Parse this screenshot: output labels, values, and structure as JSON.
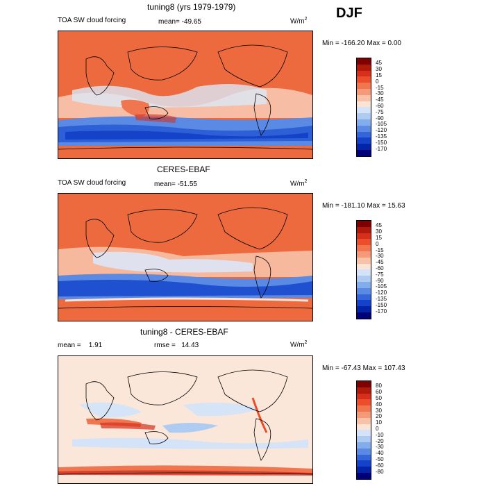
{
  "season": "DJF",
  "colors": {
    "standard": [
      "#7f0000",
      "#b01a0a",
      "#d6301c",
      "#ec4e2a",
      "#f07650",
      "#f49a78",
      "#f8c2a8",
      "#fbe3d6",
      "#d4e3f7",
      "#aecbf2",
      "#82aceb",
      "#5a8ae3",
      "#3466d9",
      "#1442c8",
      "#0424a8",
      "#000078"
    ],
    "diff": [
      "#7f0000",
      "#b01a0a",
      "#d6301c",
      "#ec4e2a",
      "#f07650",
      "#f49a78",
      "#f8c2a8",
      "#fbe3d6",
      "#d4e3f7",
      "#aecbf2",
      "#82aceb",
      "#5a8ae3",
      "#3466d9",
      "#1442c8",
      "#0424a8",
      "#000078"
    ]
  },
  "chart_data": [
    {
      "type": "heatmap",
      "title": "tuning8 (yrs 1979-1979)",
      "variable": "TOA SW cloud forcing",
      "stat_label": "mean=",
      "stat_value": "-49.65",
      "units": "W/m",
      "units_sup": "2",
      "min_label": "Min =",
      "min_value": "-166.20",
      "max_label": "Max =",
      "max_value": "0.00",
      "colorbar_levels": [
        "45",
        "30",
        "15",
        "0",
        "-15",
        "-30",
        "-45",
        "-60",
        "-75",
        "-90",
        "-105",
        "-120",
        "-135",
        "-150",
        "-170"
      ]
    },
    {
      "type": "heatmap",
      "title": "CERES-EBAF",
      "variable": "TOA SW cloud forcing",
      "stat_label": "mean=",
      "stat_value": "-51.55",
      "units": "W/m",
      "units_sup": "2",
      "min_label": "Min =",
      "min_value": "-181.10",
      "max_label": "Max =",
      "max_value": "15.63",
      "colorbar_levels": [
        "45",
        "30",
        "15",
        "0",
        "-15",
        "-30",
        "-45",
        "-60",
        "-75",
        "-90",
        "-105",
        "-120",
        "-135",
        "-150",
        "-170"
      ]
    },
    {
      "type": "heatmap",
      "title": "tuning8 - CERES-EBAF",
      "stat_label": "mean =",
      "stat_value": "1.91",
      "rmse_label": "rmse =",
      "rmse_value": "14.43",
      "units": "W/m",
      "units_sup": "2",
      "min_label": "Min =",
      "min_value": "-67.43",
      "max_label": "Max =",
      "max_value": "107.43",
      "colorbar_levels": [
        "80",
        "60",
        "50",
        "40",
        "30",
        "20",
        "10",
        "0",
        "-10",
        "-20",
        "-30",
        "-40",
        "-50",
        "-60",
        "-80"
      ]
    }
  ]
}
